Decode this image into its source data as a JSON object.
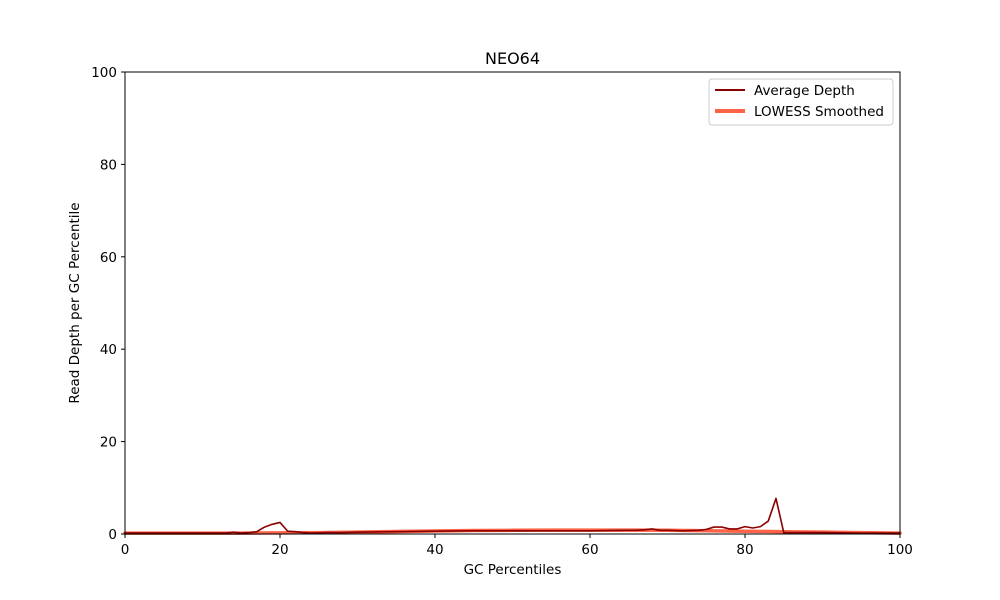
{
  "chart_data": {
    "type": "line",
    "title": "NEO64",
    "xlabel": "GC Percentiles",
    "ylabel": "Read Depth per GC Percentile",
    "xlim": [
      0,
      100
    ],
    "ylim": [
      0,
      100
    ],
    "xticks": [
      "0",
      "20",
      "40",
      "60",
      "80",
      "100"
    ],
    "yticks": [
      "0",
      "20",
      "40",
      "60",
      "80",
      "100"
    ],
    "grid": false,
    "legend_position": "top-right",
    "series": [
      {
        "name": "Average Depth",
        "color": "#8b0000",
        "x": [
          0,
          2,
          4,
          6,
          8,
          10,
          12,
          13,
          14,
          15,
          16,
          17,
          18,
          19,
          20,
          21,
          22,
          23,
          24,
          26,
          28,
          30,
          35,
          40,
          45,
          50,
          55,
          60,
          65,
          66,
          67,
          68,
          69,
          70,
          72,
          74,
          75,
          76,
          77,
          78,
          79,
          80,
          81,
          82,
          83,
          84,
          85,
          86,
          88,
          90,
          95,
          100
        ],
        "y": [
          0.2,
          0.2,
          0.2,
          0.2,
          0.2,
          0.2,
          0.2,
          0.2,
          0.4,
          0.2,
          0.3,
          0.5,
          1.5,
          2.1,
          2.5,
          0.6,
          0.5,
          0.3,
          0.2,
          0.3,
          0.3,
          0.4,
          0.5,
          0.6,
          0.7,
          0.7,
          0.7,
          0.7,
          0.8,
          0.8,
          0.9,
          1.1,
          0.8,
          0.8,
          0.7,
          0.8,
          1.0,
          1.5,
          1.5,
          1.1,
          1.1,
          1.6,
          1.3,
          1.6,
          2.8,
          7.7,
          0.3,
          0.3,
          0.3,
          0.3,
          0.2,
          0.2
        ]
      },
      {
        "name": "LOWESS Smoothed",
        "color": "#ff6347",
        "x": [
          0,
          5,
          10,
          15,
          20,
          25,
          30,
          35,
          40,
          45,
          50,
          55,
          60,
          65,
          70,
          75,
          80,
          85,
          90,
          95,
          100
        ],
        "y": [
          0.2,
          0.2,
          0.2,
          0.2,
          0.25,
          0.3,
          0.4,
          0.55,
          0.65,
          0.75,
          0.8,
          0.85,
          0.85,
          0.85,
          0.8,
          0.7,
          0.6,
          0.5,
          0.4,
          0.3,
          0.2
        ]
      }
    ]
  }
}
